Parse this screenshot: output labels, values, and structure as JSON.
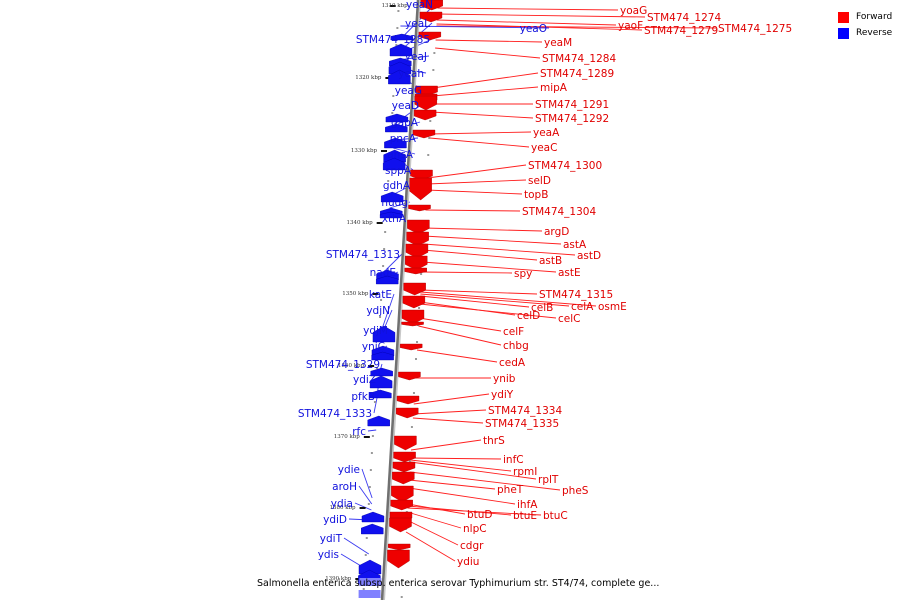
{
  "legend": {
    "items": [
      {
        "label": "Forward",
        "color": "#ff0000"
      },
      {
        "label": "Reverse",
        "color": "#0000ff"
      }
    ]
  },
  "caption": "Salmonella enterica subsp. enterica serovar Typhimurium str. ST4/74, complete ge...",
  "scale_labels": [
    "1310 kbp",
    "1320 kbp",
    "1330 kbp",
    "1340 kbp",
    "1350 kbp",
    "1360 kbp",
    "1370 kbp",
    "1380 kbp",
    "1390 kbp"
  ],
  "forward_genes": [
    "yoaG",
    "STM474_1274",
    "yaoF",
    "STM474_1279",
    "STM474_1275",
    "yeaM",
    "STM474_1284",
    "STM474_1289",
    "mipA",
    "STM474_1291",
    "STM474_1292",
    "yeaA",
    "yeaC",
    "STM474_1300",
    "selD",
    "topB",
    "STM474_1304",
    "argD",
    "astA",
    "astD",
    "astB",
    "spy",
    "astE",
    "STM474_1315",
    "celB",
    "celA",
    "osmE",
    "celD",
    "celC",
    "celF",
    "chbg",
    "cedA",
    "ynib",
    "ydiY",
    "STM474_1334",
    "STM474_1335",
    "thrS",
    "infC",
    "rpmI",
    "rplT",
    "pheT",
    "pheS",
    "ihfA",
    "btuD",
    "btuE",
    "btuC",
    "nlpC",
    "cdgr",
    "ydiu"
  ],
  "reverse_genes": [
    "yeaN",
    "yeaO",
    "yeaL",
    "STM474_1285",
    "yeaJ",
    "yeah",
    "yeaG",
    "yeaD",
    "gapA",
    "pncA",
    "ansA",
    "sppA",
    "gdhA",
    "nudg",
    "xthA",
    "STM474_1313",
    "nadE",
    "katE",
    "ydjN",
    "ydjM",
    "yniC",
    "STM474_1329",
    "ydiZ",
    "pfkB",
    "STM474_1333",
    "rfc",
    "ydie",
    "aroH",
    "ydia",
    "ydiD",
    "ydiT",
    "ydis"
  ]
}
